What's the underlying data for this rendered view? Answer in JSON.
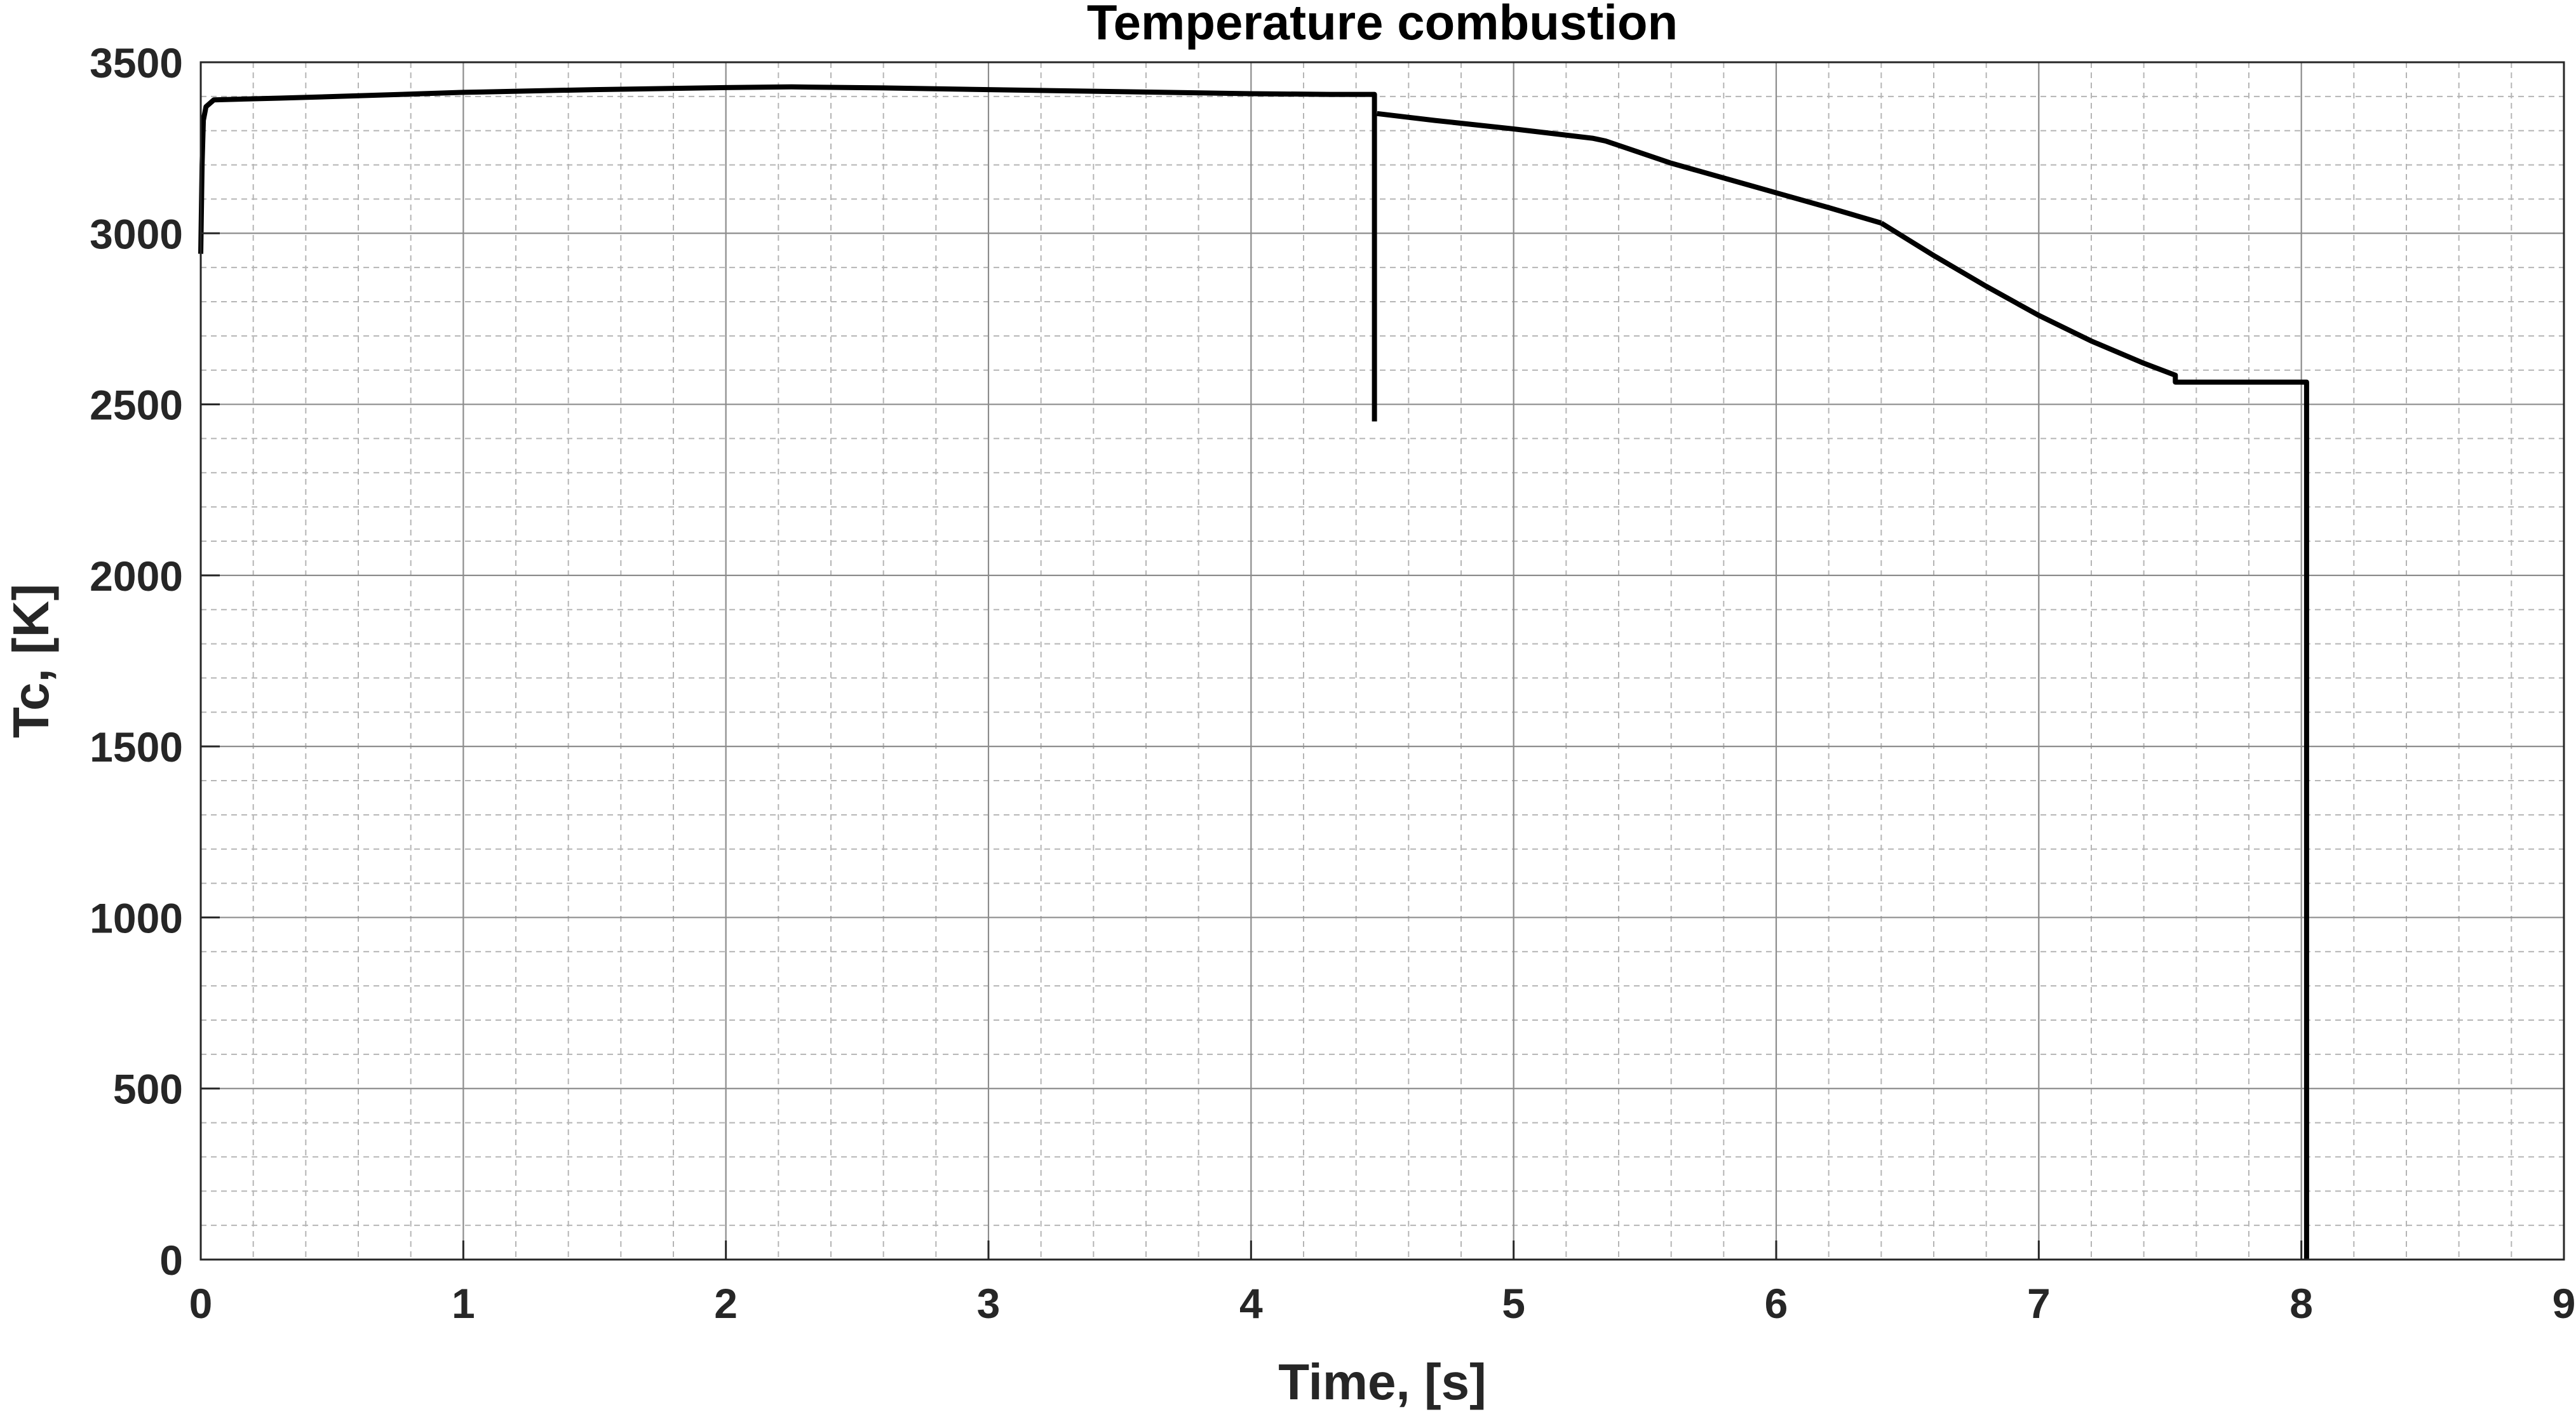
{
  "chart_data": {
    "type": "line",
    "title": "Temperature combustion",
    "xlabel": "Time, [s]",
    "ylabel": "Tc, [K]",
    "xlim": [
      0,
      9
    ],
    "ylim": [
      0,
      3500
    ],
    "x_ticks": [
      0,
      1,
      2,
      3,
      4,
      5,
      6,
      7,
      8,
      9
    ],
    "y_ticks": [
      0,
      500,
      1000,
      1500,
      2000,
      2500,
      3000,
      3500
    ],
    "x_tick_labels": [
      "0",
      "1",
      "2",
      "3",
      "4",
      "5",
      "6",
      "7",
      "8",
      "9"
    ],
    "y_tick_labels": [
      "0",
      "500",
      "1000",
      "1500",
      "2000",
      "2500",
      "3000",
      "3500"
    ],
    "grid": true,
    "minor_grid": true,
    "line_color": "#000000",
    "series": [
      {
        "points": [
          [
            0.0,
            2940
          ],
          [
            0.005,
            3200
          ],
          [
            0.01,
            3330
          ],
          [
            0.02,
            3370
          ],
          [
            0.05,
            3390
          ],
          [
            0.3,
            3395
          ],
          [
            0.6,
            3402
          ],
          [
            1.0,
            3412
          ],
          [
            1.5,
            3420
          ],
          [
            2.0,
            3426
          ],
          [
            2.25,
            3428
          ],
          [
            2.6,
            3425
          ],
          [
            3.0,
            3420
          ],
          [
            3.5,
            3414
          ],
          [
            4.0,
            3408
          ],
          [
            4.3,
            3406
          ],
          [
            4.47,
            3406
          ],
          [
            4.47,
            2450
          ]
        ]
      },
      {
        "points": [
          [
            4.48,
            3350
          ],
          [
            4.7,
            3330
          ],
          [
            5.0,
            3305
          ],
          [
            5.3,
            3278
          ],
          [
            5.35,
            3270
          ],
          [
            5.6,
            3205
          ],
          [
            5.9,
            3140
          ],
          [
            6.2,
            3075
          ],
          [
            6.4,
            3030
          ]
        ]
      },
      {
        "points": [
          [
            6.4,
            3030
          ],
          [
            6.6,
            2935
          ],
          [
            6.8,
            2845
          ],
          [
            7.0,
            2760
          ],
          [
            7.2,
            2685
          ],
          [
            7.4,
            2620
          ],
          [
            7.52,
            2585
          ],
          [
            7.52,
            2565
          ],
          [
            7.7,
            2565
          ],
          [
            8.0,
            2565
          ],
          [
            8.02,
            2565
          ],
          [
            8.02,
            0
          ]
        ]
      }
    ]
  }
}
